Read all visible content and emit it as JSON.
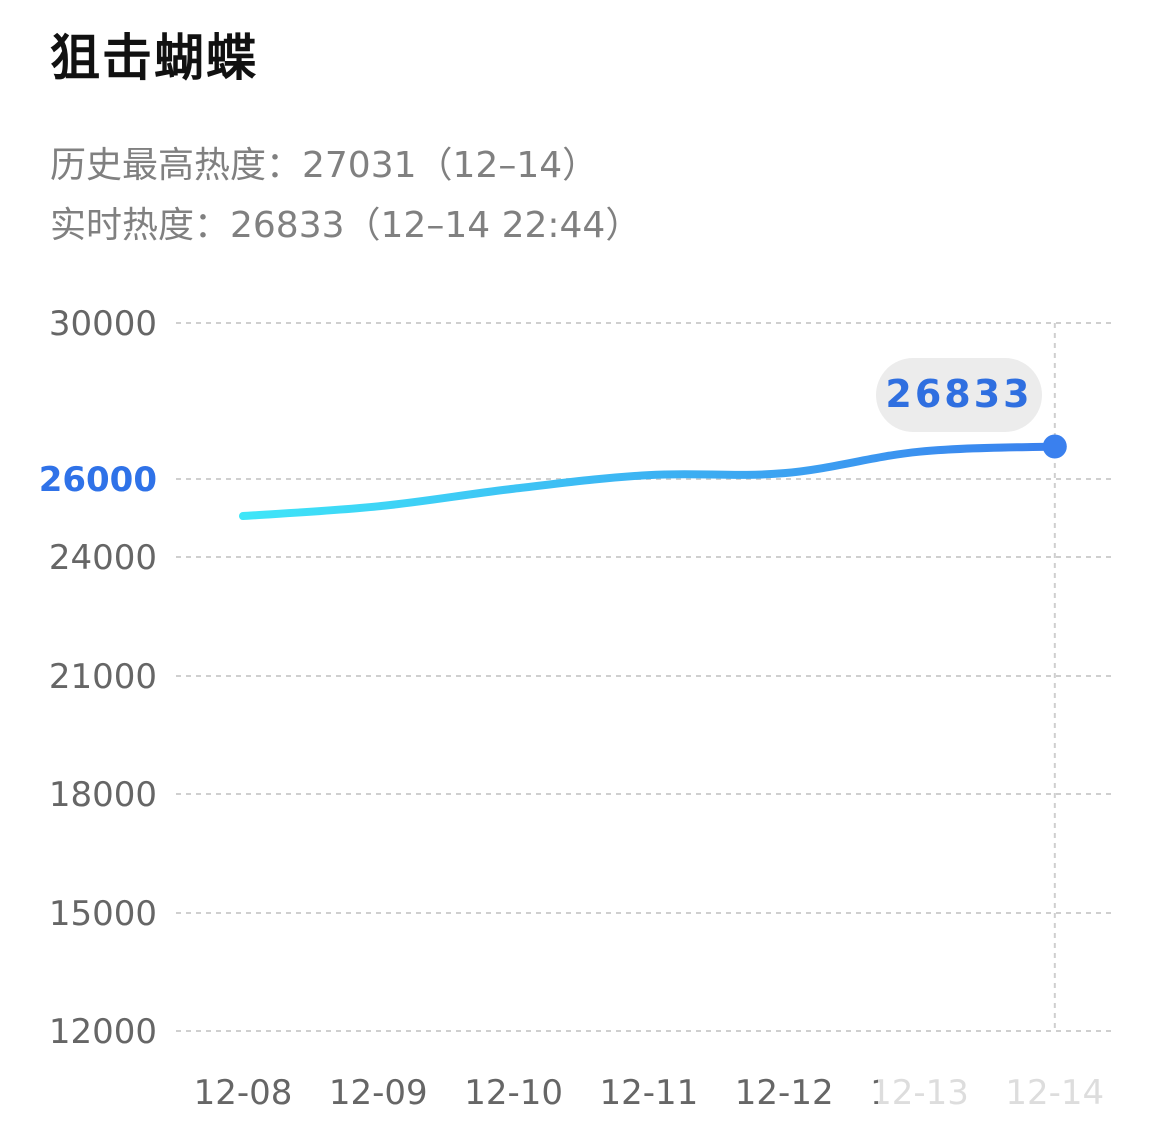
{
  "header": {
    "title": "狙击蝴蝶",
    "peak_label": "历史最高热度：27031（12–14）",
    "realtime_label": "实时热度：26833（12–14 22:44）"
  },
  "colors": {
    "line_start": "#3fe6f8",
    "line_end": "#3a80ee",
    "highlight_tick": "#2f72e8",
    "tooltip_text": "#2f6fe0",
    "tooltip_bg": "#ececec",
    "grid": "#cfcfcf",
    "tick_text": "#666666"
  },
  "chart_data": {
    "type": "line",
    "title": "狙击蝴蝶",
    "xlabel": "",
    "ylabel": "",
    "y_ticks": [
      30000,
      26000,
      24000,
      21000,
      18000,
      15000,
      12000
    ],
    "y_tick_highlight": 26000,
    "ylim": [
      12000,
      30000
    ],
    "categories": [
      "12-08",
      "12-09",
      "12-10",
      "12-11",
      "12-12",
      "12-13",
      "12-14"
    ],
    "values": [
      25050,
      25300,
      25750,
      26100,
      26150,
      26700,
      26833
    ],
    "grid": true,
    "legend": "none",
    "tooltip": {
      "category": "12-14",
      "value": "26833"
    }
  }
}
